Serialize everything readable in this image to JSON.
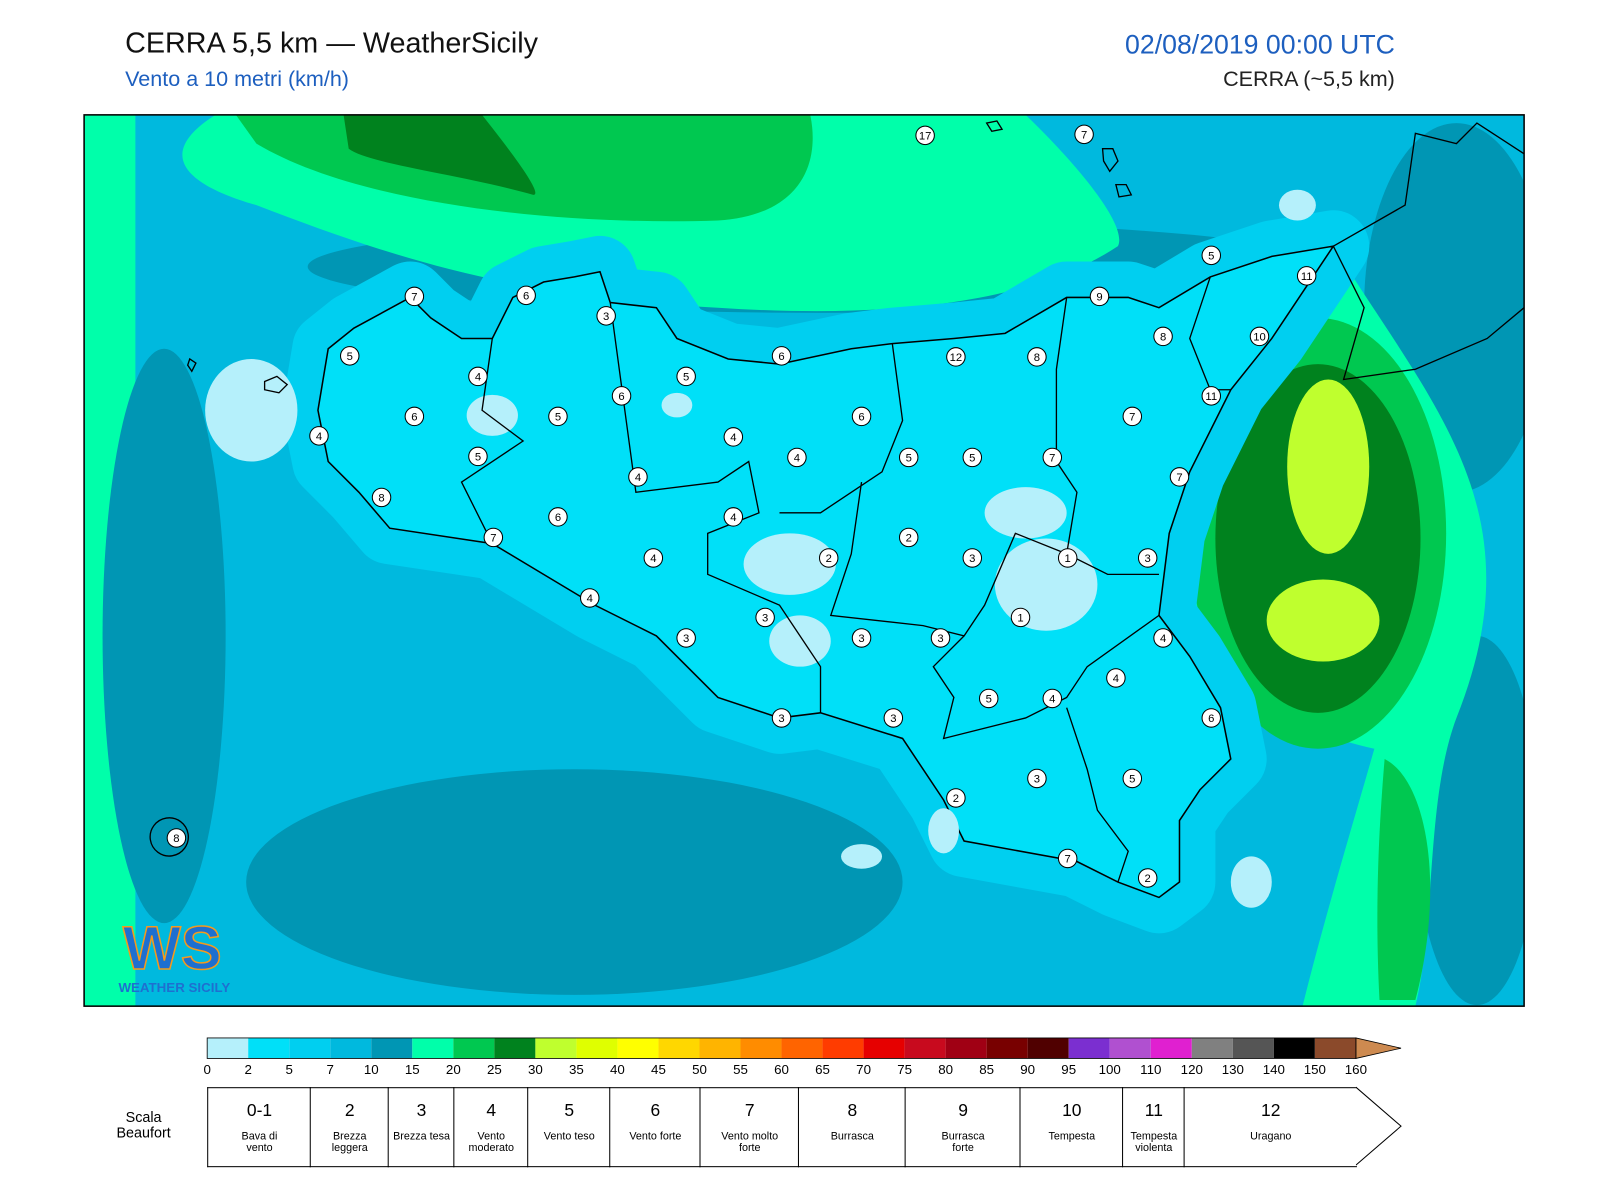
{
  "header": {
    "title": "CERRA 5,5 km — WeatherSicily",
    "subtitle": "Vento a 10 metri (km/h)",
    "datetime": "02/08/2019 00:00 UTC",
    "model": "CERRA (~5,5 km)"
  },
  "map": {
    "stations": [
      17,
      7,
      5,
      11,
      7,
      6,
      3,
      9,
      8,
      10,
      5,
      6,
      12,
      8,
      4,
      5,
      6,
      11,
      6,
      5,
      6,
      7,
      4,
      4,
      4,
      5,
      5,
      7,
      5,
      4,
      7,
      8,
      4,
      6,
      7,
      2,
      2,
      4,
      3,
      1,
      3,
      4,
      1,
      3,
      3,
      3,
      3,
      4,
      4,
      5,
      4,
      3,
      3,
      6,
      3,
      5,
      2,
      7,
      2,
      8
    ]
  },
  "logo": {
    "mark": "WS",
    "text": "WEATHER SICILY"
  },
  "colorbar": {
    "ticks": [
      0,
      2,
      5,
      7,
      10,
      15,
      20,
      25,
      30,
      35,
      40,
      45,
      50,
      55,
      60,
      65,
      70,
      75,
      80,
      85,
      90,
      95,
      100,
      110,
      120,
      130,
      140,
      150,
      160
    ],
    "colors": [
      "#b5f0fb",
      "#00e0f8",
      "#00cff0",
      "#00b9de",
      "#0096b4",
      "#00ffaa",
      "#00c850",
      "#00821e",
      "#bfff2e",
      "#dfff00",
      "#ffff00",
      "#ffd700",
      "#ffb400",
      "#ff8c00",
      "#ff6400",
      "#ff3c00",
      "#e60000",
      "#c80a1e",
      "#a00014",
      "#780000",
      "#500000",
      "#7b2fd0",
      "#b050d0",
      "#e020d0",
      "#808080",
      "#555555",
      "#000000",
      "#8b4a2b",
      "#cd8a50"
    ]
  },
  "beaufort": {
    "heading": "Scala Beaufort",
    "levels": [
      {
        "force": "0-1",
        "label": "Bava di vento"
      },
      {
        "force": 2,
        "label": "Brezza leggera"
      },
      {
        "force": 3,
        "label": "Brezza tesa"
      },
      {
        "force": 4,
        "label": "Vento moderato"
      },
      {
        "force": 5,
        "label": "Vento teso"
      },
      {
        "force": 6,
        "label": "Vento forte"
      },
      {
        "force": 7,
        "label": "Vento molto forte"
      },
      {
        "force": 8,
        "label": "Burrasca"
      },
      {
        "force": 9,
        "label": "Burrasca forte"
      },
      {
        "force": 10,
        "label": "Tempesta"
      },
      {
        "force": 11,
        "label": "Tempesta violenta"
      },
      {
        "force": 12,
        "label": "Uragano"
      }
    ]
  }
}
